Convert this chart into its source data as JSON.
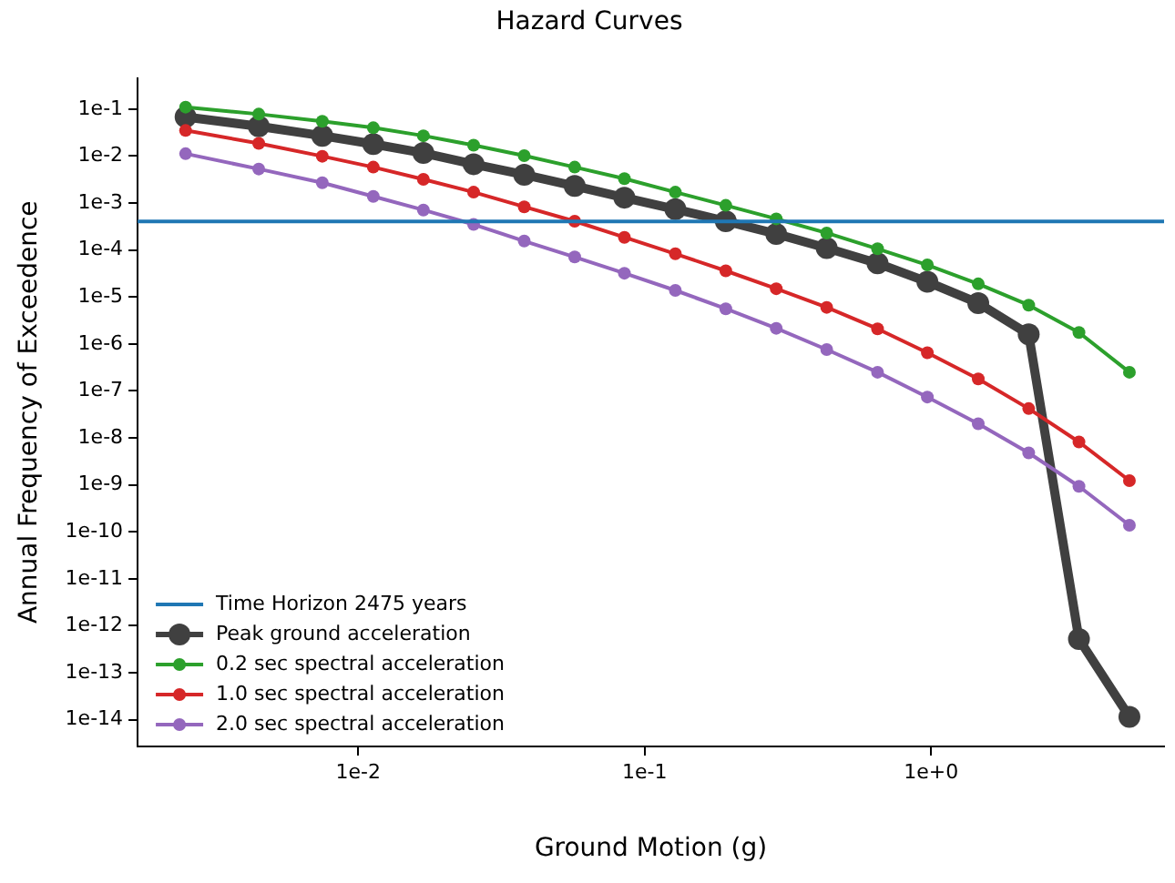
{
  "chart_data": {
    "type": "line",
    "title": "Hazard Curves",
    "xlabel": "Ground Motion (g)",
    "ylabel": "Annual Frequency of Exceedence",
    "x": [
      0.0025,
      0.0045,
      0.0075,
      0.0113,
      0.0169,
      0.0253,
      0.038,
      0.057,
      0.085,
      0.128,
      0.192,
      0.288,
      0.432,
      0.65,
      0.97,
      1.46,
      2.19,
      3.28,
      4.92
    ],
    "series": [
      {
        "name": "Peak ground acceleration",
        "color": "#404040",
        "values": [
          0.068,
          0.043,
          0.027,
          0.018,
          0.0116,
          0.0067,
          0.004,
          0.0023,
          0.0013,
          0.00074,
          0.00041,
          0.00022,
          0.00011,
          5.2e-05,
          2.1e-05,
          7.4e-06,
          1.6e-06,
          5.2e-13,
          1.15e-14
        ]
      },
      {
        "name": "0.2 sec spectral acceleration",
        "color": "#2ca02c",
        "values": [
          0.11,
          0.078,
          0.055,
          0.04,
          0.027,
          0.017,
          0.0102,
          0.0058,
          0.0033,
          0.0017,
          0.00089,
          0.00046,
          0.00023,
          0.000106,
          4.8e-05,
          1.9e-05,
          6.7e-06,
          1.75e-06,
          2.5e-07
        ]
      },
      {
        "name": "1.0 sec spectral acceleration",
        "color": "#d62728",
        "values": [
          0.035,
          0.0186,
          0.0099,
          0.0058,
          0.0032,
          0.0017,
          0.00083,
          0.00041,
          0.000186,
          8.3e-05,
          3.6e-05,
          1.5e-05,
          6e-06,
          2.1e-06,
          6.5e-07,
          1.8e-07,
          4.2e-08,
          8.2e-09,
          1.23e-09
        ]
      },
      {
        "name": "2.0 sec spectral acceleration",
        "color": "#9467bd",
        "values": [
          0.0112,
          0.0053,
          0.0027,
          0.00138,
          0.00071,
          0.00035,
          0.000155,
          7.1e-05,
          3.2e-05,
          1.38e-05,
          5.6e-06,
          2.15e-06,
          7.6e-07,
          2.5e-07,
          7.4e-08,
          2e-08,
          4.8e-09,
          9.3e-10,
          1.38e-10
        ]
      }
    ],
    "ref_lines": [
      {
        "axis": "y",
        "value": 0.000404,
        "label": "Time Horizon 2475 years",
        "color": "#1f77b4"
      }
    ],
    "log": "xy",
    "xlim": [
      0.0017,
      6.5
    ],
    "ylim": [
      2.7e-15,
      0.46
    ],
    "xticks": [
      {
        "value": 0.01,
        "label": "1e-2"
      },
      {
        "value": 0.1,
        "label": "1e-1"
      },
      {
        "value": 1,
        "label": "1e+0"
      }
    ],
    "yticks": [
      {
        "value": 1e-14,
        "label": "1e-14"
      },
      {
        "value": 1e-13,
        "label": "1e-13"
      },
      {
        "value": 1e-12,
        "label": "1e-12"
      },
      {
        "value": 1e-11,
        "label": "1e-11"
      },
      {
        "value": 1e-10,
        "label": "1e-10"
      },
      {
        "value": 1e-09,
        "label": "1e-9"
      },
      {
        "value": 1e-08,
        "label": "1e-8"
      },
      {
        "value": 1e-07,
        "label": "1e-7"
      },
      {
        "value": 1e-06,
        "label": "1e-6"
      },
      {
        "value": 1e-05,
        "label": "1e-5"
      },
      {
        "value": 0.0001,
        "label": "1e-4"
      },
      {
        "value": 0.001,
        "label": "1e-3"
      },
      {
        "value": 0.01,
        "label": "1e-2"
      },
      {
        "value": 0.1,
        "label": "1e-1"
      }
    ],
    "grid": false,
    "legend": "bottom left",
    "marker": "circle",
    "line_style": "solid"
  }
}
